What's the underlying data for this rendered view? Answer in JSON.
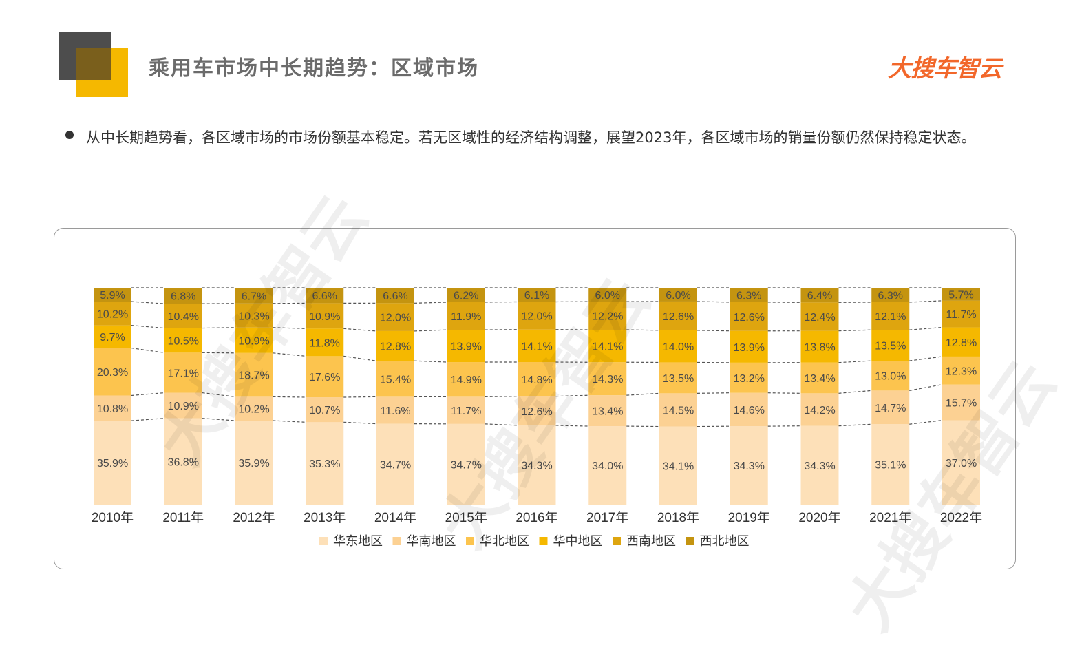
{
  "page": {
    "title": "乘用车市场中长期趋势：区域市场",
    "logo_text": "大搜车智云",
    "bullet": "从中长期趋势看，各区域市场的市场份额基本稳定。若无区域性的经济结构调整，展望2023年，各区域市场的销量份额仍然保持稳定状态。",
    "watermark_text": "大搜车智云"
  },
  "chart_data": {
    "type": "bar",
    "stacked": true,
    "normalized_100": true,
    "categories": [
      "2010年",
      "2011年",
      "2012年",
      "2013年",
      "2014年",
      "2015年",
      "2016年",
      "2017年",
      "2018年",
      "2019年",
      "2020年",
      "2021年",
      "2022年"
    ],
    "series": [
      {
        "name": "华东地区",
        "color": "#fde0b8",
        "values": [
          35.9,
          36.8,
          35.9,
          35.3,
          34.7,
          34.7,
          34.3,
          34.0,
          34.1,
          34.3,
          34.3,
          35.1,
          37.0
        ]
      },
      {
        "name": "华南地区",
        "color": "#fcd193",
        "values": [
          10.8,
          10.9,
          10.2,
          10.7,
          11.6,
          11.7,
          12.6,
          13.4,
          14.5,
          14.6,
          14.2,
          14.7,
          15.7
        ]
      },
      {
        "name": "华北地区",
        "color": "#fcc44e",
        "values": [
          20.3,
          17.1,
          18.7,
          17.6,
          15.4,
          14.9,
          14.8,
          14.3,
          13.5,
          13.2,
          13.4,
          13.0,
          12.3
        ]
      },
      {
        "name": "华中地区",
        "color": "#f5b800",
        "values": [
          9.7,
          10.5,
          10.9,
          11.8,
          12.8,
          13.9,
          14.1,
          14.1,
          14.0,
          13.9,
          13.8,
          13.5,
          12.8
        ]
      },
      {
        "name": "西南地区",
        "color": "#dea50f",
        "values": [
          10.2,
          10.4,
          10.3,
          10.9,
          12.0,
          11.9,
          12.0,
          12.2,
          12.6,
          12.6,
          12.4,
          12.1,
          11.7
        ]
      },
      {
        "name": "西北地区",
        "color": "#c49410",
        "values": [
          5.9,
          6.8,
          6.7,
          6.6,
          6.6,
          6.2,
          6.1,
          6.0,
          6.0,
          6.3,
          6.4,
          6.3,
          5.7
        ]
      }
    ],
    "data_labels": [
      [
        "35.9%",
        "36.8%",
        "35.9%",
        "35.3%",
        "34.7%",
        "34.7%",
        "34.3%",
        "34.0%",
        "34.1%",
        "34.3%",
        "34.3%",
        "35.1%",
        "37.0%"
      ],
      [
        "10.8%",
        "10.9%",
        "10.2%",
        "10.7%",
        "11.6%",
        "11.7%",
        "12.6%",
        "13.4%",
        "14.5%",
        "14.6%",
        "14.2%",
        "14.7%",
        "15.7%"
      ],
      [
        "20.3%",
        "17.1%",
        "18.7%",
        "17.6%",
        "15.4%",
        "14.9%",
        "14.8%",
        "14.3%",
        "13.5%",
        "13.2%",
        "13.4%",
        "13.0%",
        "12.3%"
      ],
      [
        "9.7%",
        "10.5%",
        "10.9%",
        "11.8%",
        "12.8%",
        "13.9%",
        "14.1%",
        "14.1%",
        "14.0%",
        "13.9%",
        "13.8%",
        "13.5%",
        "12.8%"
      ],
      [
        "10.2%",
        "10.4%",
        "10.3%",
        "10.9%",
        "12.0%",
        "11.9%",
        "12.0%",
        "12.2%",
        "12.6%",
        "12.6%",
        "12.4%",
        "12.1%",
        "11.7%"
      ],
      [
        "5.9%",
        "6.8%",
        "6.7%",
        "6.6%",
        "6.6%",
        "6.2%",
        "6.1%",
        "6.0%",
        "6.0%",
        "6.3%",
        "6.4%",
        "6.3%",
        "5.7%"
      ]
    ],
    "series_lines": "dashed",
    "legend_position": "bottom-center",
    "grid": false
  }
}
